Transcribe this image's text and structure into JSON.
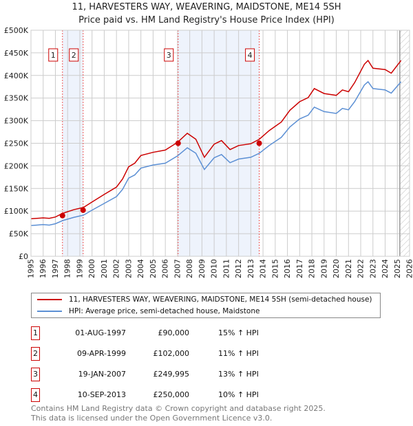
{
  "title": "11, HARVESTERS WAY, WEAVERING, MAIDSTONE, ME14 5SH",
  "subtitle": "Price paid vs. HM Land Registry's House Price Index (HPI)",
  "chart_data": {
    "type": "line",
    "xlim": [
      1995,
      2026
    ],
    "ylim": [
      0,
      500000
    ],
    "x_ticks": [
      "1995",
      "1996",
      "1997",
      "1998",
      "1999",
      "2000",
      "2001",
      "2002",
      "2003",
      "2004",
      "2005",
      "2006",
      "2007",
      "2008",
      "2009",
      "2010",
      "2011",
      "2012",
      "2013",
      "2014",
      "2015",
      "2016",
      "2017",
      "2018",
      "2019",
      "2020",
      "2021",
      "2022",
      "2023",
      "2024",
      "2025",
      "2026"
    ],
    "y_ticks": [
      {
        "v": 0,
        "label": "£0"
      },
      {
        "v": 50000,
        "label": "£50K"
      },
      {
        "v": 100000,
        "label": "£100K"
      },
      {
        "v": 150000,
        "label": "£150K"
      },
      {
        "v": 200000,
        "label": "£200K"
      },
      {
        "v": 250000,
        "label": "£250K"
      },
      {
        "v": 300000,
        "label": "£300K"
      },
      {
        "v": 350000,
        "label": "£350K"
      },
      {
        "v": 400000,
        "label": "£400K"
      },
      {
        "v": 450000,
        "label": "£450K"
      },
      {
        "v": 500000,
        "label": "£500K"
      }
    ],
    "grid": true,
    "forecast_hatch_from": 2025.2,
    "shaded_ranges": [
      [
        1997.58,
        1999.27
      ],
      [
        2007.05,
        2013.69
      ]
    ],
    "x": [
      1995.0,
      1996.0,
      1996.5,
      1997.0,
      1997.6,
      1998.5,
      1999.3,
      2000,
      2001,
      2002,
      2002.5,
      2003,
      2003.5,
      2004,
      2005,
      2006,
      2007,
      2007.8,
      2008.5,
      2009.2,
      2010,
      2010.6,
      2011.3,
      2012,
      2013,
      2013.7,
      2014.5,
      2015.5,
      2016.2,
      2017,
      2017.7,
      2018.2,
      2019,
      2020,
      2020.5,
      2021,
      2021.5,
      2022.3,
      2022.6,
      2023,
      2024,
      2024.5,
      2025.3
    ],
    "series": [
      {
        "name": "11, HARVESTERS WAY, WEAVERING, MAIDSTONE, ME14 5SH (semi-detached house)",
        "color": "#cc0000",
        "values": [
          83000,
          85000,
          84000,
          87000,
          95000,
          103000,
          108000,
          120000,
          137000,
          153000,
          171000,
          198000,
          206000,
          223000,
          230000,
          235000,
          252000,
          272000,
          259000,
          219000,
          248000,
          256000,
          236000,
          245000,
          249000,
          259000,
          278000,
          297000,
          323000,
          342000,
          351000,
          371000,
          360000,
          356000,
          368000,
          364000,
          384000,
          425000,
          433000,
          416000,
          413000,
          405000,
          433000
        ]
      },
      {
        "name": "HPI: Average price, semi-detached house, Maidstone",
        "color": "#5b8fd4",
        "values": [
          68000,
          70000,
          69000,
          72000,
          79000,
          86000,
          91000,
          102000,
          117000,
          132000,
          148000,
          173000,
          180000,
          195000,
          202000,
          206000,
          222000,
          240000,
          228000,
          192000,
          218000,
          225000,
          207000,
          215000,
          219000,
          228000,
          245000,
          263000,
          286000,
          304000,
          312000,
          330000,
          320000,
          316000,
          327000,
          324000,
          342000,
          379000,
          386000,
          371000,
          368000,
          361000,
          386000
        ]
      }
    ],
    "sales": [
      {
        "num": "1",
        "x": 1997.58,
        "value": 90000,
        "date": "01-AUG-1997",
        "price": "£90,000",
        "hpi": "15% ↑ HPI"
      },
      {
        "num": "2",
        "x": 1999.27,
        "value": 102000,
        "date": "09-APR-1999",
        "price": "£102,000",
        "hpi": "11% ↑ HPI"
      },
      {
        "num": "3",
        "x": 2007.05,
        "value": 249995,
        "date": "19-JAN-2007",
        "price": "£249,995",
        "hpi": "13% ↑ HPI"
      },
      {
        "num": "4",
        "x": 2013.69,
        "value": 250000,
        "date": "10-SEP-2013",
        "price": "£250,000",
        "hpi": "10% ↑ HPI"
      }
    ]
  },
  "legend": {
    "red": "11, HARVESTERS WAY, WEAVERING, MAIDSTONE, ME14 5SH (semi-detached house)",
    "blue": "HPI: Average price, semi-detached house, Maidstone"
  },
  "footer": {
    "line1": "Contains HM Land Registry data © Crown copyright and database right 2025.",
    "line2": "This data is licensed under the Open Government Licence v3.0."
  }
}
